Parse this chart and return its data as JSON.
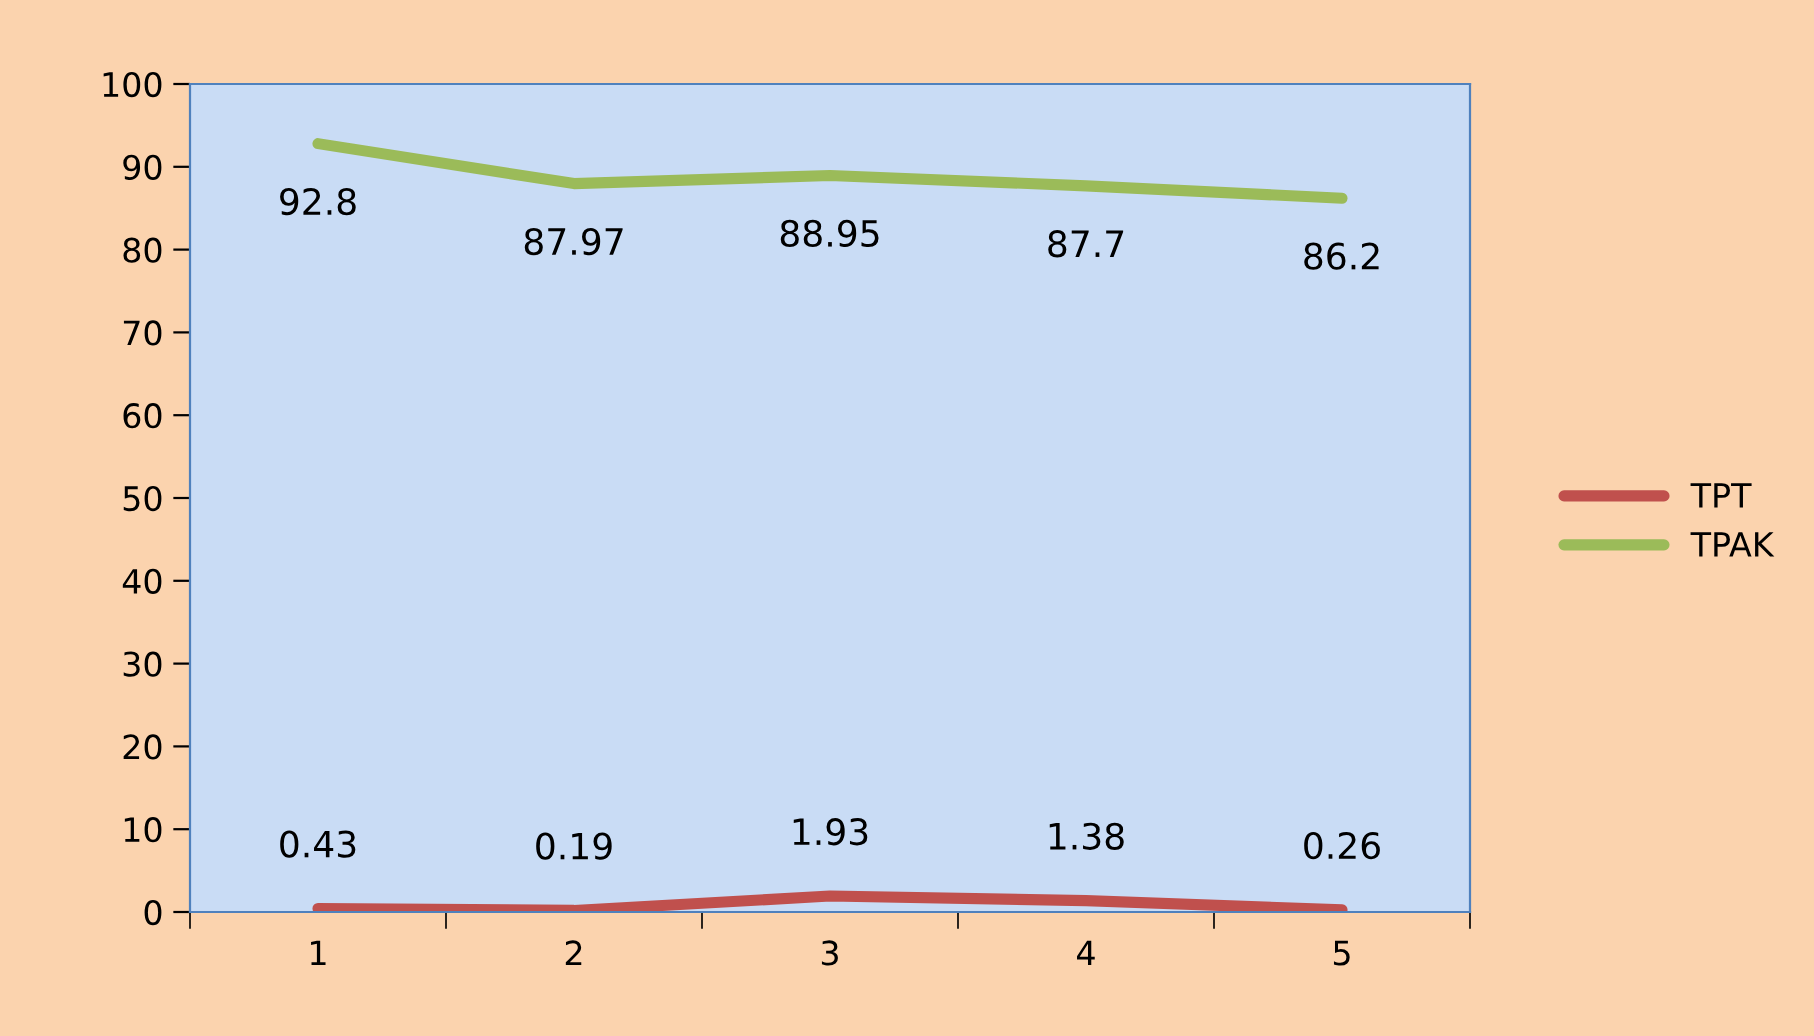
{
  "chart_data": {
    "type": "line",
    "categories": [
      "1",
      "2",
      "3",
      "4",
      "5"
    ],
    "series": [
      {
        "name": "TPT",
        "color": "#c0504d",
        "values": [
          0.43,
          0.19,
          1.93,
          1.38,
          0.26
        ]
      },
      {
        "name": "TPAK",
        "color": "#9bbb59",
        "values": [
          92.8,
          87.97,
          88.95,
          87.7,
          86.2
        ]
      }
    ],
    "ylim": [
      0,
      100
    ],
    "yticks": [
      0,
      10,
      20,
      30,
      40,
      50,
      60,
      70,
      80,
      90,
      100
    ],
    "data_labels": true,
    "legend": "right",
    "grid": false,
    "marker": "none",
    "line_style": "solid"
  }
}
